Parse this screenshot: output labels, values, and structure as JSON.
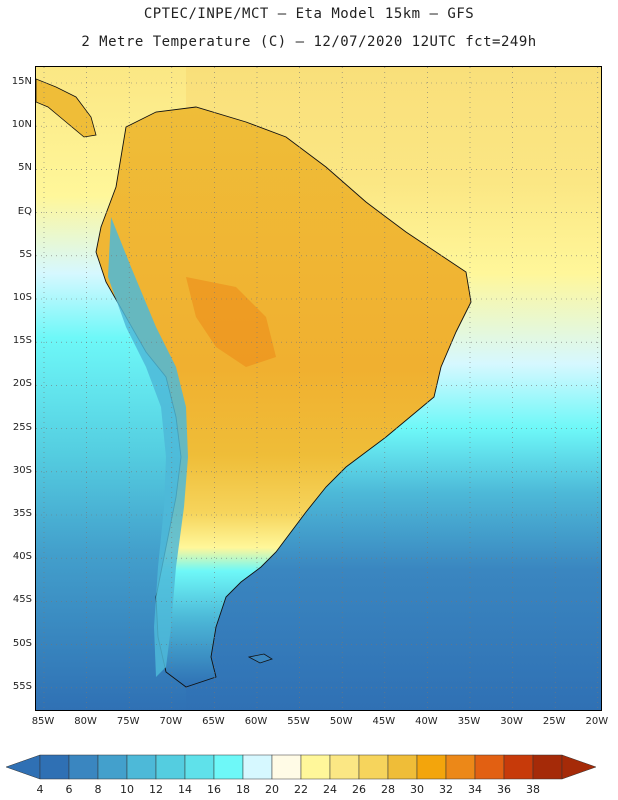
{
  "header": {
    "line1": "CPTEC/INPE/MCT –  Eta Model 15km – GFS",
    "line2": "2 Metre Temperature (C) – 12/07/2020 12UTC fct=249h"
  },
  "map": {
    "lat_ticks": [
      "15N",
      "10N",
      "5N",
      "EQ",
      "5S",
      "10S",
      "15S",
      "20S",
      "25S",
      "30S",
      "35S",
      "40S",
      "45S",
      "50S",
      "55S"
    ],
    "lon_ticks": [
      "85W",
      "80W",
      "75W",
      "70W",
      "65W",
      "60W",
      "55W",
      "50W",
      "45W",
      "40W",
      "35W",
      "30W",
      "25W",
      "20W"
    ]
  },
  "colorbar": {
    "labels": [
      "4",
      "6",
      "8",
      "10",
      "12",
      "14",
      "16",
      "18",
      "20",
      "22",
      "24",
      "26",
      "28",
      "30",
      "32",
      "34",
      "36",
      "38"
    ],
    "colors": [
      "#2f70b4",
      "#3a86c0",
      "#43a0cc",
      "#4db9d8",
      "#54cde0",
      "#5fe1ea",
      "#6ef8f8",
      "#d6f8ff",
      "#fffbe6",
      "#fff79a",
      "#fbe784",
      "#f6d45c",
      "#efbd38",
      "#f3a50c",
      "#ec8818",
      "#e26012",
      "#c73a0a",
      "#a52a08"
    ]
  }
}
